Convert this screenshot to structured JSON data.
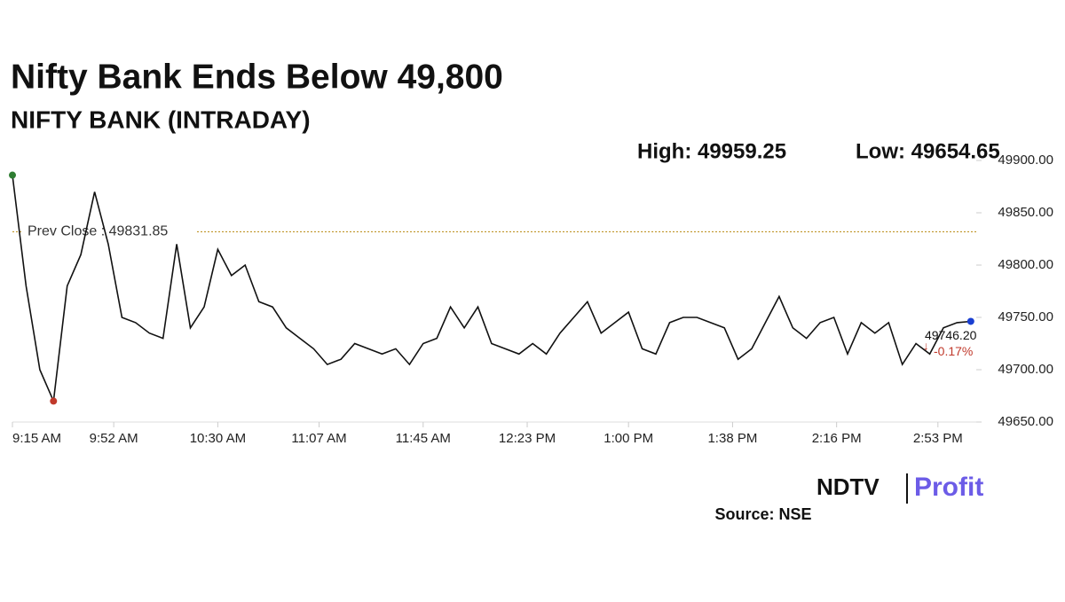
{
  "chart_data": {
    "type": "line",
    "title": "Nifty Bank Ends Below 49,800",
    "subtitle": "NIFTY BANK (INTRADAY)",
    "high_label": "High: 49959.25",
    "low_label": "Low: 49654.65",
    "prev_close": {
      "value": 49831.85,
      "label": "Prev Close : 49831.85"
    },
    "last_price": {
      "label": "49746.20",
      "change": "-0.17%"
    },
    "source": "Source: NSE",
    "logo": {
      "left": "NDTV",
      "right": "Profit"
    },
    "color": "#111111",
    "x": [
      "9:15 AM",
      "9:20 AM",
      "9:25 AM",
      "9:30 AM",
      "9:35 AM",
      "9:40 AM",
      "9:45 AM",
      "9:50 AM",
      "9:55 AM",
      "10:00 AM",
      "10:05 AM",
      "10:10 AM",
      "10:15 AM",
      "10:20 AM",
      "10:25 AM",
      "10:30 AM",
      "10:35 AM",
      "10:40 AM",
      "10:45 AM",
      "10:50 AM",
      "10:55 AM",
      "11:00 AM",
      "11:05 AM",
      "11:10 AM",
      "11:15 AM",
      "11:20 AM",
      "11:25 AM",
      "11:30 AM",
      "11:35 AM",
      "11:40 AM",
      "11:45 AM",
      "11:50 AM",
      "11:55 AM",
      "12:00 PM",
      "12:05 PM",
      "12:10 PM",
      "12:15 PM",
      "12:20 PM",
      "12:25 PM",
      "12:30 PM",
      "12:35 PM",
      "12:40 PM",
      "12:45 PM",
      "12:50 PM",
      "12:55 PM",
      "1:00 PM",
      "1:05 PM",
      "1:10 PM",
      "1:15 PM",
      "1:20 PM",
      "1:25 PM",
      "1:30 PM",
      "1:35 PM",
      "1:40 PM",
      "1:45 PM",
      "1:50 PM",
      "1:55 PM",
      "2:00 PM",
      "2:05 PM",
      "2:10 PM",
      "2:15 PM",
      "2:20 PM",
      "2:25 PM",
      "2:30 PM",
      "2:35 PM",
      "2:40 PM",
      "2:45 PM",
      "2:50 PM",
      "2:55 PM",
      "3:00 PM",
      "3:05 PM"
    ],
    "values": [
      49886,
      49780,
      49700,
      49670,
      49780,
      49810,
      49870,
      49820,
      49750,
      49745,
      49735,
      49730,
      49820,
      49740,
      49760,
      49815,
      49790,
      49800,
      49765,
      49760,
      49740,
      49730,
      49720,
      49705,
      49710,
      49725,
      49720,
      49715,
      49720,
      49705,
      49725,
      49730,
      49760,
      49740,
      49760,
      49725,
      49720,
      49715,
      49725,
      49715,
      49735,
      49750,
      49765,
      49735,
      49745,
      49755,
      49720,
      49715,
      49745,
      49750,
      49750,
      49745,
      49740,
      49710,
      49720,
      49745,
      49770,
      49740,
      49730,
      49745,
      49750,
      49715,
      49745,
      49735,
      49745,
      49705,
      49725,
      49715,
      49740,
      49745,
      49746.2
    ],
    "xlim": [
      "9:15 AM",
      "3:07 PM"
    ],
    "xticks": [
      "9:15 AM",
      "9:52 AM",
      "10:30 AM",
      "11:07 AM",
      "11:45 AM",
      "12:23 PM",
      "1:00 PM",
      "1:38 PM",
      "2:16 PM",
      "2:53 PM"
    ],
    "ylim": [
      49650,
      49900
    ],
    "yticks": [
      {
        "value": 49650,
        "label": "49650.00"
      },
      {
        "value": 49700,
        "label": "49700.00"
      },
      {
        "value": 49750,
        "label": "49750.00"
      },
      {
        "value": 49800,
        "label": "49800.00"
      },
      {
        "value": 49850,
        "label": "49850.00"
      },
      {
        "value": 49900,
        "label": "49900.00"
      }
    ]
  }
}
